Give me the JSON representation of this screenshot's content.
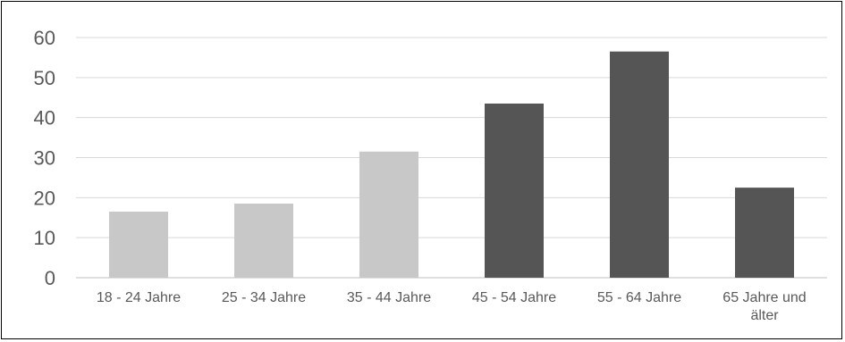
{
  "chart_data": {
    "type": "bar",
    "title": "",
    "xlabel": "",
    "ylabel": "",
    "ylim": [
      0,
      60
    ],
    "yticks": [
      0,
      10,
      20,
      30,
      40,
      50,
      60
    ],
    "grid": true,
    "legend": "none",
    "categories": [
      [
        "18 - 24 Jahre"
      ],
      [
        "25 - 34 Jahre"
      ],
      [
        "35 - 44 Jahre"
      ],
      [
        "45 - 54 Jahre"
      ],
      [
        "55 - 64 Jahre"
      ],
      [
        "65 Jahre und",
        "älter"
      ]
    ],
    "values": [
      16.5,
      18.5,
      31.5,
      43.5,
      56.5,
      22.5
    ],
    "bar_colors": [
      "#c8c8c8",
      "#c8c8c8",
      "#c8c8c8",
      "#555555",
      "#555555",
      "#555555"
    ]
  },
  "colors": {
    "grid": "#d9d9d9",
    "axis": "#bfbfbf",
    "text": "#595959",
    "frame": "#000000"
  }
}
